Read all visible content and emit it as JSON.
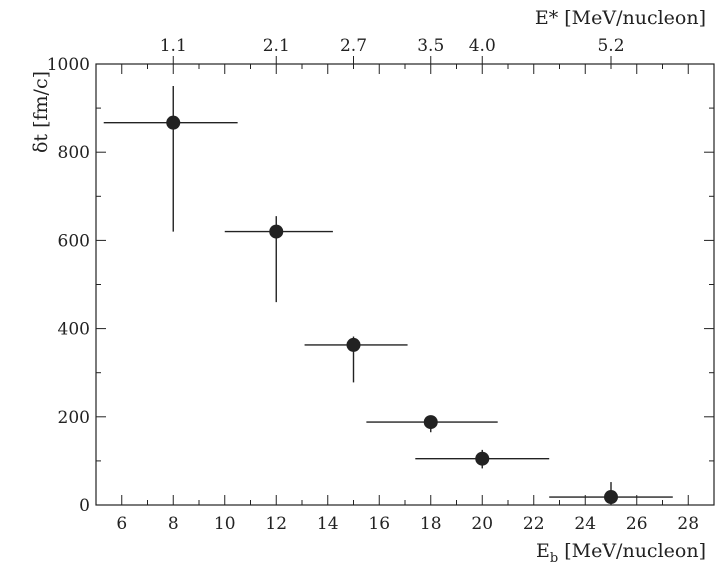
{
  "chart_data": {
    "type": "scatter",
    "xlabel": {
      "main": "E",
      "sub": "b",
      "rest": " [MeV/nucleon]"
    },
    "ylabel": "δt [fm/c]",
    "top_xlabel": "E* [MeV/nucleon]",
    "xlim": [
      5,
      29
    ],
    "ylim": [
      0,
      1000
    ],
    "grid": false,
    "x_ticks": [
      6,
      8,
      10,
      12,
      14,
      16,
      18,
      20,
      22,
      24,
      26,
      28
    ],
    "y_ticks": [
      0,
      200,
      400,
      600,
      800,
      1000
    ],
    "top_ticks": [
      {
        "at": 8,
        "label": "1.1"
      },
      {
        "at": 12,
        "label": "2.1"
      },
      {
        "at": 15,
        "label": "2.7"
      },
      {
        "at": 18,
        "label": "3.5"
      },
      {
        "at": 20,
        "label": "4.0"
      },
      {
        "at": 25,
        "label": "5.2"
      }
    ],
    "points": [
      {
        "x": 8,
        "y": 867,
        "xerr": [
          5.3,
          10.5
        ],
        "yerr": [
          620,
          950
        ]
      },
      {
        "x": 12,
        "y": 620,
        "xerr": [
          10.0,
          14.2
        ],
        "yerr": [
          460,
          655
        ]
      },
      {
        "x": 15,
        "y": 363,
        "xerr": [
          13.1,
          17.1
        ],
        "yerr": [
          278,
          382
        ]
      },
      {
        "x": 18,
        "y": 188,
        "xerr": [
          15.5,
          20.6
        ],
        "yerr": [
          165,
          200
        ]
      },
      {
        "x": 20,
        "y": 105,
        "xerr": [
          17.4,
          22.6
        ],
        "yerr": [
          83,
          125
        ]
      },
      {
        "x": 25,
        "y": 18,
        "xerr": [
          22.6,
          27.4
        ],
        "yerr": [
          0,
          52
        ]
      }
    ]
  }
}
